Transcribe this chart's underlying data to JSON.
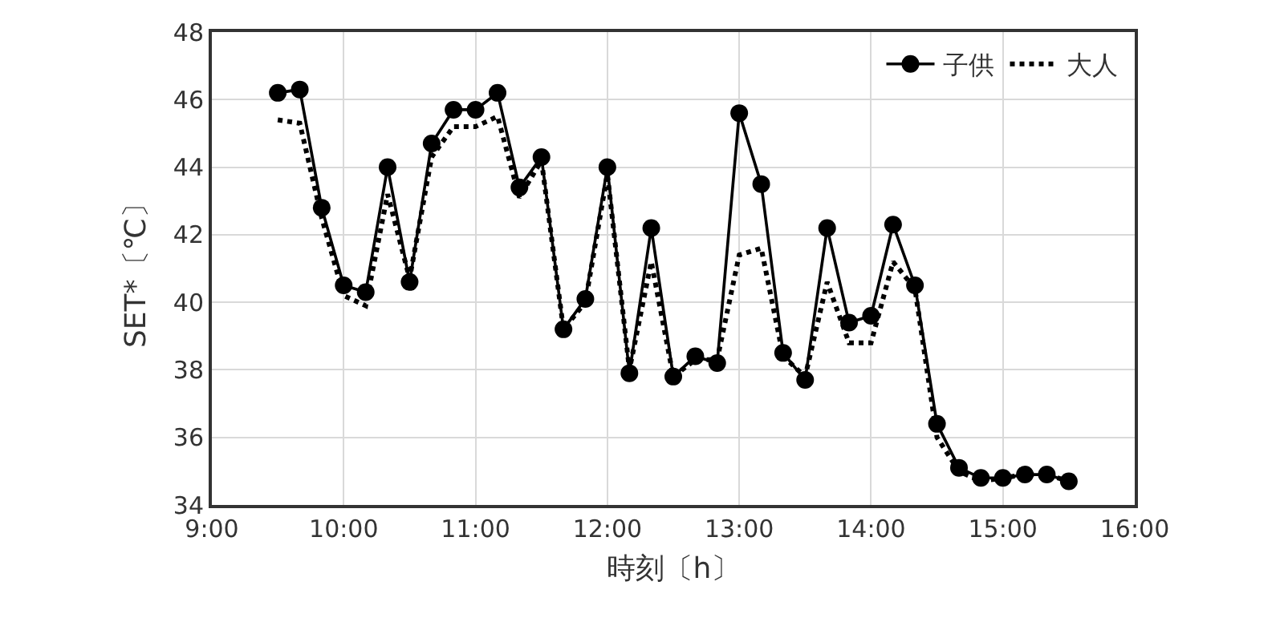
{
  "chart_data": {
    "type": "line",
    "xlabel": "時刻〔h〕",
    "ylabel": "SET*〔℃〕",
    "x": [
      9.5,
      9.667,
      9.833,
      10,
      10.167,
      10.333,
      10.5,
      10.667,
      10.833,
      11,
      11.167,
      11.333,
      11.5,
      11.667,
      11.833,
      12,
      12.167,
      12.333,
      12.5,
      12.667,
      12.833,
      13,
      13.167,
      13.333,
      13.5,
      13.667,
      13.833,
      14,
      14.167,
      14.333,
      14.5,
      14.667,
      14.833,
      15,
      15.167,
      15.333,
      15.5
    ],
    "series": [
      {
        "name": "子供",
        "color": "#000000",
        "marker": "circle",
        "line_style": "solid",
        "values": [
          46.2,
          46.3,
          42.8,
          40.5,
          40.3,
          44.0,
          40.6,
          44.7,
          45.7,
          45.7,
          46.2,
          43.4,
          44.3,
          39.2,
          40.1,
          44.0,
          37.9,
          42.2,
          37.8,
          38.4,
          38.2,
          45.6,
          43.5,
          38.5,
          37.7,
          42.2,
          39.4,
          39.6,
          42.3,
          40.5,
          36.4,
          35.1,
          34.8,
          34.8,
          34.9,
          34.9,
          34.7
        ]
      },
      {
        "name": "大人",
        "color": "#000000",
        "marker": "none",
        "line_style": "dotted",
        "values": [
          45.4,
          45.3,
          42.5,
          40.2,
          39.9,
          43.2,
          40.7,
          44.3,
          45.2,
          45.2,
          45.5,
          43.1,
          44.2,
          39.2,
          40.0,
          43.8,
          38.0,
          41.2,
          37.8,
          38.3,
          38.3,
          41.4,
          41.6,
          38.4,
          37.8,
          40.6,
          38.8,
          38.8,
          41.2,
          40.4,
          36.0,
          35.0,
          34.7,
          34.8,
          34.9,
          34.9,
          34.7
        ]
      }
    ],
    "xlim": [
      9,
      16
    ],
    "xticks": [
      {
        "value": 9,
        "label": "9:00"
      },
      {
        "value": 10,
        "label": "10:00"
      },
      {
        "value": 11,
        "label": "11:00"
      },
      {
        "value": 12,
        "label": "12:00"
      },
      {
        "value": 13,
        "label": "13:00"
      },
      {
        "value": 14,
        "label": "14:00"
      },
      {
        "value": 15,
        "label": "15:00"
      },
      {
        "value": 16,
        "label": "16:00"
      }
    ],
    "ylim": [
      34,
      48
    ],
    "yticks": [
      34,
      36,
      38,
      40,
      42,
      44,
      46,
      48
    ],
    "grid": true,
    "legend": "top right"
  }
}
